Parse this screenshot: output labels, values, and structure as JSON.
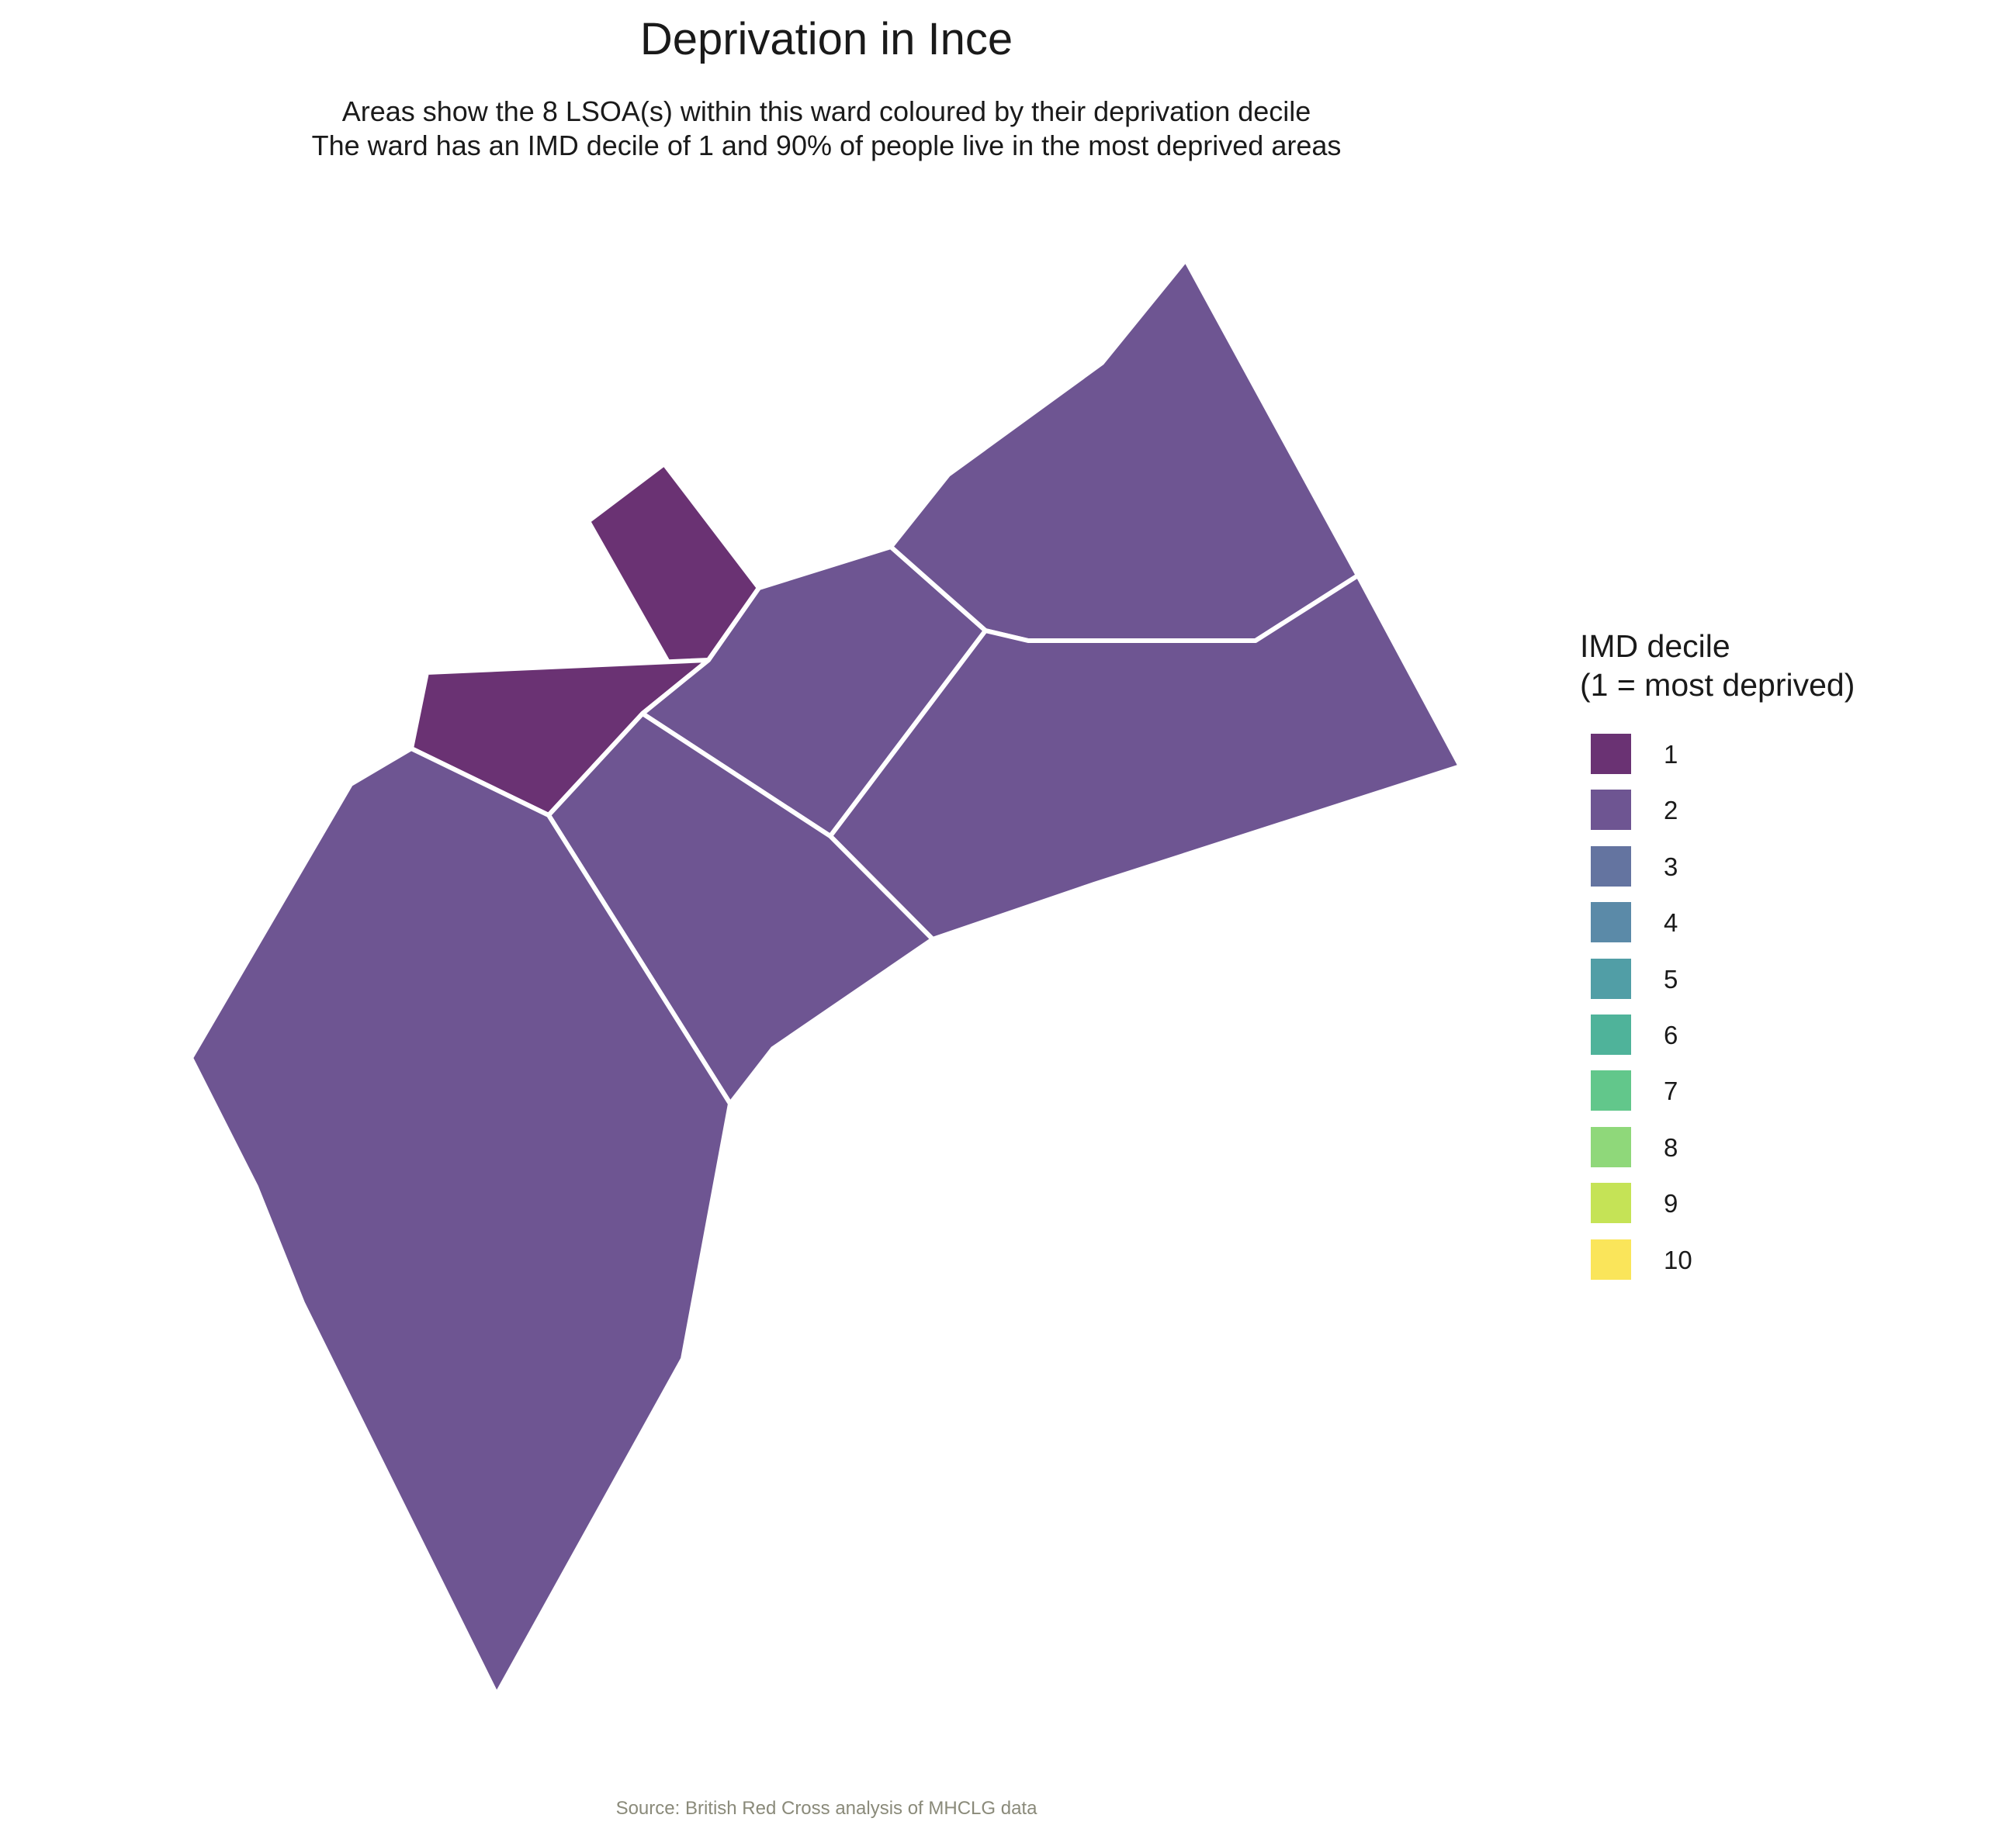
{
  "title": "Deprivation in Ince",
  "subtitle": [
    "Areas show the 8 LSOA(s) within this ward coloured by their deprivation decile",
    "The ward has an IMD decile of 1 and 90% of people live in the most deprived areas"
  ],
  "caption": "Source: British Red Cross analysis of MHCLG data",
  "legend": {
    "title": "IMD decile\n(1 = most deprived)",
    "items": [
      {
        "label": "1",
        "color": "#6a3273"
      },
      {
        "label": "2",
        "color": "#6e5592"
      },
      {
        "label": "3",
        "color": "#6474a0"
      },
      {
        "label": "4",
        "color": "#5b8aa8"
      },
      {
        "label": "5",
        "color": "#519ea6"
      },
      {
        "label": "6",
        "color": "#4fb39a"
      },
      {
        "label": "7",
        "color": "#62c78b"
      },
      {
        "label": "8",
        "color": "#8fd87a"
      },
      {
        "label": "9",
        "color": "#c5e356"
      },
      {
        "label": "10",
        "color": "#fae55a"
      }
    ]
  },
  "map": {
    "areas": [
      {
        "decile": 1
      },
      {
        "decile": 1
      },
      {
        "decile": 2
      },
      {
        "decile": 2
      },
      {
        "decile": 2
      },
      {
        "decile": 2
      },
      {
        "decile": 2
      },
      {
        "decile": 2
      }
    ]
  }
}
